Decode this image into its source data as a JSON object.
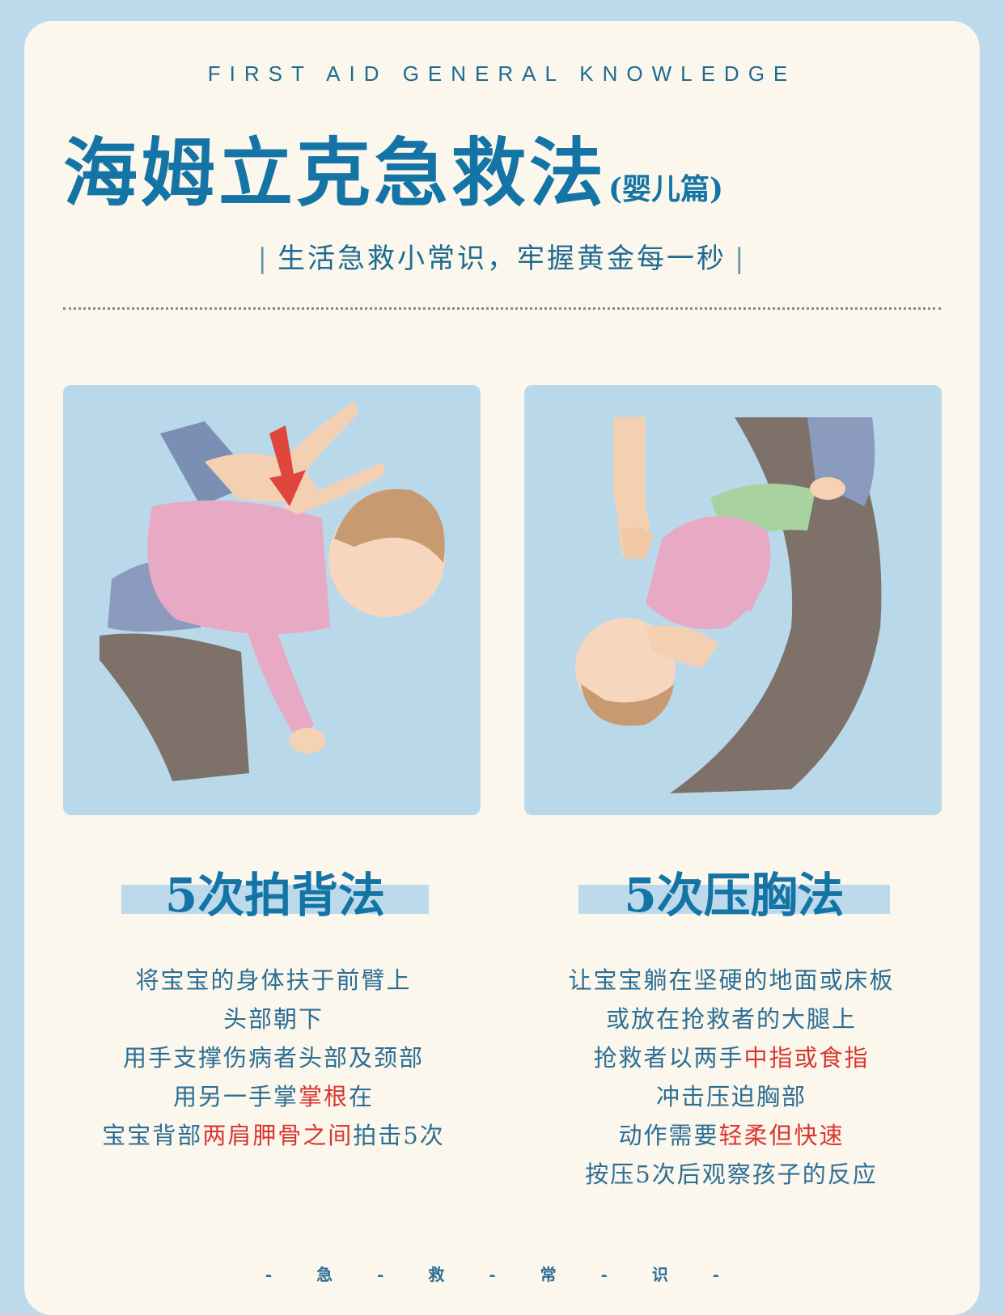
{
  "header": {
    "eyebrow": "FIRST AID GENERAL KNOWLEDGE",
    "title": "海姆立克急救法",
    "title_suffix": "(婴儿篇)",
    "subtitle": "生活急救小常识，牢握黄金每一秒"
  },
  "methods": {
    "left": {
      "title": "5次拍背法",
      "lines": [
        {
          "a": "将宝宝的身体扶于前臂上",
          "b": "",
          "c": ""
        },
        {
          "a": "头部朝下",
          "b": "",
          "c": ""
        },
        {
          "a": "用手支撑伤病者头部及颈部",
          "b": "",
          "c": ""
        },
        {
          "a": "用另一手掌",
          "b": "掌根",
          "c": "在"
        },
        {
          "a": "宝宝背部",
          "b": "两肩胛骨之间",
          "c": "拍击5次"
        }
      ]
    },
    "right": {
      "title": "5次压胸法",
      "lines": [
        {
          "a": "让宝宝躺在坚硬的地面或床板",
          "b": "",
          "c": ""
        },
        {
          "a": "或放在抢救者的大腿上",
          "b": "",
          "c": ""
        },
        {
          "a": "抢救者以两手",
          "b": "中指或食指",
          "c": ""
        },
        {
          "a": "冲击压迫胸部",
          "b": "",
          "c": ""
        },
        {
          "a": "动作需要",
          "b": "轻柔但快速",
          "c": ""
        },
        {
          "a": "按压5次后观察孩子的反应",
          "b": "",
          "c": ""
        }
      ]
    }
  },
  "footer": "- 急 - 救 - 常 - 识 -",
  "colors": {
    "background": "#bcdaec",
    "card": "#fbf7ec",
    "primary": "#1474a6",
    "highlight": "#d9362f"
  }
}
